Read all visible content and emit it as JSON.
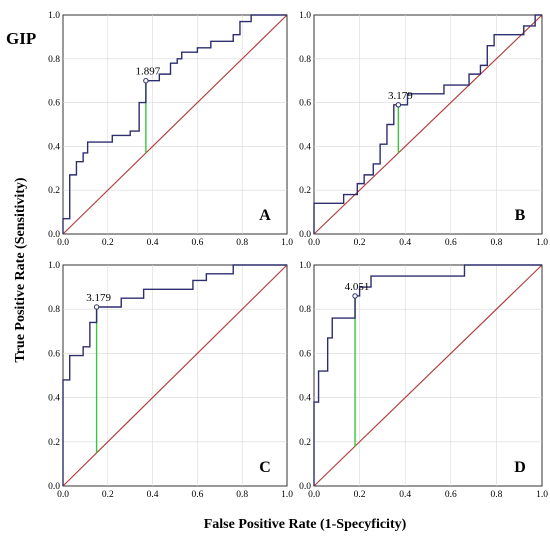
{
  "figure": {
    "title": "GIP",
    "xlabel": "False Positive Rate (1-Specyficity)",
    "ylabel": "True Positive Rate (Sensitivity)"
  },
  "chart_data": [
    {
      "type": "line",
      "panel": "A",
      "xlim": [
        0,
        1
      ],
      "ylim": [
        0,
        1
      ],
      "x_ticks": [
        "0.0",
        "0.2",
        "0.4",
        "0.6",
        "0.8",
        "1.0"
      ],
      "y_ticks": [
        "0.0",
        "0.2",
        "0.4",
        "0.6",
        "0.8",
        "1.0"
      ],
      "grid": true,
      "cutoff": {
        "label": "1.897",
        "x": 0.37,
        "y": 0.7,
        "y_diag": 0.37
      },
      "roc": [
        [
          0,
          0
        ],
        [
          0,
          0.07
        ],
        [
          0.03,
          0.07
        ],
        [
          0.03,
          0.27
        ],
        [
          0.06,
          0.27
        ],
        [
          0.06,
          0.33
        ],
        [
          0.09,
          0.33
        ],
        [
          0.09,
          0.37
        ],
        [
          0.11,
          0.37
        ],
        [
          0.11,
          0.42
        ],
        [
          0.22,
          0.42
        ],
        [
          0.22,
          0.45
        ],
        [
          0.3,
          0.45
        ],
        [
          0.3,
          0.47
        ],
        [
          0.34,
          0.47
        ],
        [
          0.34,
          0.6
        ],
        [
          0.37,
          0.6
        ],
        [
          0.37,
          0.7
        ],
        [
          0.43,
          0.7
        ],
        [
          0.43,
          0.73
        ],
        [
          0.48,
          0.73
        ],
        [
          0.48,
          0.78
        ],
        [
          0.51,
          0.78
        ],
        [
          0.51,
          0.8
        ],
        [
          0.53,
          0.8
        ],
        [
          0.53,
          0.83
        ],
        [
          0.6,
          0.83
        ],
        [
          0.6,
          0.85
        ],
        [
          0.66,
          0.85
        ],
        [
          0.66,
          0.88
        ],
        [
          0.76,
          0.88
        ],
        [
          0.76,
          0.91
        ],
        [
          0.79,
          0.91
        ],
        [
          0.79,
          0.97
        ],
        [
          0.84,
          0.97
        ],
        [
          0.84,
          1
        ],
        [
          1,
          1
        ]
      ]
    },
    {
      "type": "line",
      "panel": "B",
      "xlim": [
        0,
        1
      ],
      "ylim": [
        0,
        1
      ],
      "x_ticks": [
        "0.0",
        "0.2",
        "0.4",
        "0.6",
        "0.8",
        "1.0"
      ],
      "y_ticks": [
        "0.0",
        "0.2",
        "0.4",
        "0.6",
        "0.8",
        "1.0"
      ],
      "grid": true,
      "cutoff": {
        "label": "3.179",
        "x": 0.37,
        "y": 0.59,
        "y_diag": 0.37
      },
      "roc": [
        [
          0,
          0
        ],
        [
          0,
          0.14
        ],
        [
          0.13,
          0.14
        ],
        [
          0.13,
          0.18
        ],
        [
          0.19,
          0.18
        ],
        [
          0.19,
          0.23
        ],
        [
          0.22,
          0.23
        ],
        [
          0.22,
          0.27
        ],
        [
          0.26,
          0.27
        ],
        [
          0.26,
          0.32
        ],
        [
          0.29,
          0.32
        ],
        [
          0.29,
          0.41
        ],
        [
          0.32,
          0.41
        ],
        [
          0.32,
          0.5
        ],
        [
          0.35,
          0.5
        ],
        [
          0.35,
          0.59
        ],
        [
          0.41,
          0.59
        ],
        [
          0.41,
          0.64
        ],
        [
          0.57,
          0.64
        ],
        [
          0.57,
          0.68
        ],
        [
          0.68,
          0.68
        ],
        [
          0.68,
          0.73
        ],
        [
          0.73,
          0.73
        ],
        [
          0.73,
          0.77
        ],
        [
          0.76,
          0.77
        ],
        [
          0.76,
          0.86
        ],
        [
          0.79,
          0.86
        ],
        [
          0.79,
          0.91
        ],
        [
          0.92,
          0.91
        ],
        [
          0.92,
          0.95
        ],
        [
          0.97,
          0.95
        ],
        [
          0.97,
          1
        ],
        [
          1,
          1
        ]
      ]
    },
    {
      "type": "line",
      "panel": "C",
      "xlim": [
        0,
        1
      ],
      "ylim": [
        0,
        1
      ],
      "x_ticks": [
        "0.0",
        "0.2",
        "0.4",
        "0.6",
        "0.8",
        "1.0"
      ],
      "y_ticks": [
        "0.0",
        "0.2",
        "0.4",
        "0.6",
        "0.8",
        "1.0"
      ],
      "grid": true,
      "cutoff": {
        "label": "3.179",
        "x": 0.15,
        "y": 0.81,
        "y_diag": 0.15
      },
      "roc": [
        [
          0,
          0
        ],
        [
          0,
          0.48
        ],
        [
          0.03,
          0.48
        ],
        [
          0.03,
          0.59
        ],
        [
          0.09,
          0.59
        ],
        [
          0.09,
          0.63
        ],
        [
          0.12,
          0.63
        ],
        [
          0.12,
          0.74
        ],
        [
          0.15,
          0.74
        ],
        [
          0.15,
          0.81
        ],
        [
          0.26,
          0.81
        ],
        [
          0.26,
          0.85
        ],
        [
          0.36,
          0.85
        ],
        [
          0.36,
          0.89
        ],
        [
          0.58,
          0.89
        ],
        [
          0.58,
          0.93
        ],
        [
          0.64,
          0.93
        ],
        [
          0.64,
          0.96
        ],
        [
          0.76,
          0.96
        ],
        [
          0.76,
          1
        ],
        [
          1,
          1
        ]
      ]
    },
    {
      "type": "line",
      "panel": "D",
      "xlim": [
        0,
        1
      ],
      "ylim": [
        0,
        1
      ],
      "x_ticks": [
        "0.0",
        "0.2",
        "0.4",
        "0.6",
        "0.8",
        "1.0"
      ],
      "y_ticks": [
        "0.0",
        "0.2",
        "0.4",
        "0.6",
        "0.8",
        "1.0"
      ],
      "grid": true,
      "cutoff": {
        "label": "4.051",
        "x": 0.18,
        "y": 0.86,
        "y_diag": 0.18
      },
      "roc": [
        [
          0,
          0
        ],
        [
          0,
          0.38
        ],
        [
          0.02,
          0.38
        ],
        [
          0.02,
          0.52
        ],
        [
          0.06,
          0.52
        ],
        [
          0.06,
          0.67
        ],
        [
          0.08,
          0.67
        ],
        [
          0.08,
          0.76
        ],
        [
          0.18,
          0.76
        ],
        [
          0.18,
          0.86
        ],
        [
          0.2,
          0.86
        ],
        [
          0.2,
          0.9
        ],
        [
          0.25,
          0.9
        ],
        [
          0.25,
          0.95
        ],
        [
          0.66,
          0.95
        ],
        [
          0.66,
          1
        ],
        [
          1,
          1
        ]
      ]
    }
  ]
}
